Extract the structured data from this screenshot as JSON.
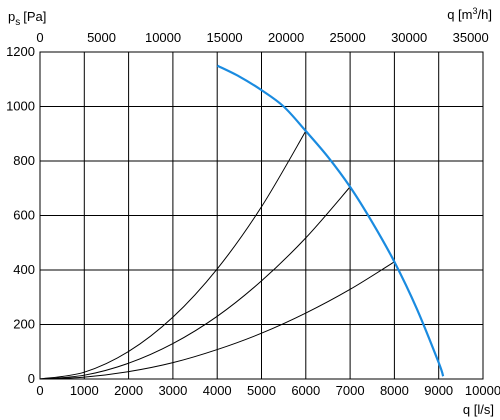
{
  "chart_data": {
    "type": "line",
    "title": "",
    "ylabel": "p",
    "ylabel_sub": "s",
    "ylabel_unit": "[Pa]",
    "xlabel": "q [l/s]",
    "x2label": "q [m",
    "x2label_sup": "3",
    "x2label_end": "/h]",
    "xlim": [
      0,
      10000
    ],
    "ylim": [
      0,
      1200
    ],
    "x2lim": [
      0,
      36000
    ],
    "grid": true,
    "x_ticks": [
      0,
      1000,
      2000,
      3000,
      4000,
      5000,
      6000,
      7000,
      8000,
      9000,
      10000
    ],
    "y_ticks": [
      0,
      200,
      400,
      600,
      800,
      1000,
      1200
    ],
    "x2_ticks": [
      0,
      5000,
      10000,
      15000,
      20000,
      25000,
      30000,
      35000
    ],
    "fan_curve": {
      "color": "#1a8be0",
      "x": [
        4000,
        4500,
        5000,
        5500,
        6000,
        6500,
        7000,
        7500,
        8000,
        8500,
        9000,
        9100
      ],
      "y": [
        1150,
        1110,
        1060,
        1000,
        910,
        815,
        705,
        575,
        430,
        260,
        60,
        10
      ]
    },
    "system_curves": [
      {
        "x": [
          0,
          1000,
          2000,
          3000,
          4000,
          5000,
          6000
        ],
        "y": [
          0,
          25,
          101,
          227,
          404,
          632,
          910
        ]
      },
      {
        "x": [
          0,
          1000,
          2000,
          3000,
          4000,
          5000,
          6000,
          7000
        ],
        "y": [
          0,
          14,
          58,
          130,
          230,
          360,
          518,
          705
        ]
      },
      {
        "x": [
          0,
          1000,
          2000,
          3000,
          4000,
          5000,
          6000,
          7000,
          8000
        ],
        "y": [
          0,
          7,
          27,
          60,
          108,
          168,
          242,
          329,
          430
        ]
      }
    ]
  }
}
